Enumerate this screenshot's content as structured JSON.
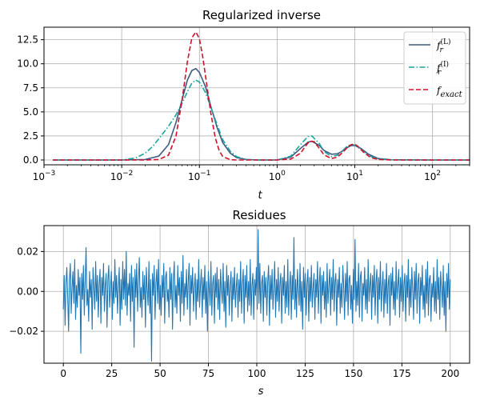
{
  "chart_data": [
    {
      "type": "line",
      "title": "Regularized inverse",
      "xlabel": "t",
      "ylabel": "",
      "x_scale": "log",
      "xlim": [
        0.001,
        300
      ],
      "ylim": [
        -0.5,
        13.8
      ],
      "x_ticks": [
        {
          "value": 0.001,
          "base": "10",
          "exp": "−3"
        },
        {
          "value": 0.01,
          "base": "10",
          "exp": "−2"
        },
        {
          "value": 0.1,
          "base": "10",
          "exp": "−1"
        },
        {
          "value": 1,
          "base": "10",
          "exp": "0"
        },
        {
          "value": 10,
          "base": "10",
          "exp": "1"
        },
        {
          "value": 100,
          "base": "10",
          "exp": "2"
        }
      ],
      "y_ticks": [
        {
          "value": 0,
          "label": "0.0"
        },
        {
          "value": 2.5,
          "label": "2.5"
        },
        {
          "value": 5,
          "label": "5.0"
        },
        {
          "value": 7.5,
          "label": "7.5"
        },
        {
          "value": 10,
          "label": "10.0"
        },
        {
          "value": 12.5,
          "label": "12.5"
        }
      ],
      "grid": true,
      "legend_position": "top-right",
      "series": [
        {
          "name": "f_r^(L)",
          "legend_base": "f",
          "legend_sub": "r",
          "legend_sup": "(L)",
          "color": "#3d5a80",
          "dash": "solid",
          "x": [
            0.0013,
            0.01,
            0.02,
            0.03,
            0.04,
            0.05,
            0.06,
            0.07,
            0.08,
            0.09,
            0.1,
            0.12,
            0.14,
            0.17,
            0.2,
            0.25,
            0.3,
            0.4,
            0.6,
            1,
            1.5,
            2,
            2.5,
            2.8,
            3.5,
            4,
            5,
            6,
            7,
            8,
            9,
            10,
            12,
            15,
            20,
            30,
            100,
            300
          ],
          "y": [
            0,
            0,
            0.05,
            0.4,
            1.6,
            3.9,
            6.3,
            8.3,
            9.3,
            9.5,
            9.1,
            7.6,
            5.6,
            3.3,
            1.8,
            0.7,
            0.25,
            0.05,
            0,
            0,
            0.3,
            1.2,
            1.85,
            1.95,
            1.5,
            1.0,
            0.6,
            0.65,
            0.95,
            1.3,
            1.5,
            1.5,
            1.2,
            0.6,
            0.15,
            0.02,
            0,
            0
          ]
        },
        {
          "name": "f_r^(I)",
          "legend_base": "f",
          "legend_sub": "r",
          "legend_sup": "(I)",
          "color": "#1aa59e",
          "dash": "dashdot",
          "x": [
            0.0013,
            0.01,
            0.015,
            0.02,
            0.025,
            0.03,
            0.04,
            0.05,
            0.06,
            0.07,
            0.08,
            0.09,
            0.1,
            0.12,
            0.14,
            0.17,
            0.2,
            0.25,
            0.3,
            0.4,
            0.6,
            1,
            1.5,
            2,
            2.5,
            2.8,
            3.5,
            4,
            5,
            6,
            7,
            8,
            9,
            10,
            12,
            15,
            20,
            30,
            100,
            300
          ],
          "y": [
            0,
            0,
            0.2,
            0.7,
            1.4,
            2.2,
            3.5,
            4.7,
            5.9,
            7.1,
            8.0,
            8.3,
            8.1,
            7.0,
            5.5,
            3.6,
            2.1,
            0.9,
            0.35,
            0.05,
            0,
            0,
            0.4,
            1.6,
            2.45,
            2.5,
            1.7,
            0.9,
            0.35,
            0.5,
            1.0,
            1.45,
            1.6,
            1.55,
            1.1,
            0.45,
            0.1,
            0.02,
            0,
            0
          ]
        },
        {
          "name": "f_exact",
          "legend_base": "f",
          "legend_sub": "exact",
          "legend_sup": "",
          "color": "#d0102a",
          "dash": "dashed",
          "x": [
            0.0013,
            0.02,
            0.03,
            0.04,
            0.05,
            0.06,
            0.07,
            0.08,
            0.09,
            0.1,
            0.11,
            0.12,
            0.14,
            0.16,
            0.18,
            0.2,
            0.25,
            0.3,
            0.5,
            1,
            1.5,
            2,
            2.3,
            2.6,
            3,
            3.5,
            4,
            5,
            6,
            7,
            8,
            9,
            10,
            11,
            13,
            16,
            20,
            30,
            100,
            300
          ],
          "y": [
            0,
            0,
            0.05,
            0.5,
            2.5,
            6.3,
            10.2,
            12.7,
            13.3,
            12.6,
            10.8,
            8.7,
            4.9,
            2.3,
            0.95,
            0.35,
            0.03,
            0,
            0,
            0,
            0.1,
            0.7,
            1.4,
            1.95,
            1.9,
            1.2,
            0.55,
            0.15,
            0.3,
            0.8,
            1.3,
            1.6,
            1.65,
            1.4,
            0.8,
            0.25,
            0.05,
            0,
            0,
            0
          ]
        }
      ]
    },
    {
      "type": "line",
      "title": "Residues",
      "xlabel": "s",
      "ylabel": "",
      "x_scale": "linear",
      "xlim": [
        -10,
        210
      ],
      "ylim": [
        -0.036,
        0.033
      ],
      "x_ticks": [
        {
          "value": 0,
          "label": "0"
        },
        {
          "value": 25,
          "label": "25"
        },
        {
          "value": 50,
          "label": "50"
        },
        {
          "value": 75,
          "label": "75"
        },
        {
          "value": 100,
          "label": "100"
        },
        {
          "value": 125,
          "label": "125"
        },
        {
          "value": 150,
          "label": "150"
        },
        {
          "value": 175,
          "label": "175"
        },
        {
          "value": 200,
          "label": "200"
        }
      ],
      "y_ticks": [
        {
          "value": 0.02,
          "label": "0.02"
        },
        {
          "value": 0,
          "label": "0.00"
        },
        {
          "value": -0.02,
          "label": "−0.02"
        }
      ],
      "grid": true,
      "series": [
        {
          "color": "#1f77b4",
          "x_start": 0,
          "x_end": 200,
          "y": [
            -0.009,
            0.008,
            -0.017,
            0.004,
            0.012,
            -0.003,
            -0.02,
            0.006,
            0.014,
            -0.011,
            0.002,
            0.01,
            -0.006,
            0.016,
            -0.014,
            0.003,
            -0.008,
            0.011,
            -0.002,
            0.007,
            -0.031,
            0.009,
            -0.004,
            0.013,
            -0.012,
            0.005,
            0.022,
            -0.007,
            0.001,
            -0.015,
            0.01,
            -0.003,
            0.006,
            -0.019,
            0.012,
            0.002,
            -0.009,
            0.015,
            -0.005,
            0.008,
            -0.013,
            0.004,
            0.011,
            -0.016,
            0.007,
            -0.002,
            0.014,
            -0.01,
            0.003,
            0.009,
            -0.018,
            0.006,
            0.013,
            -0.008,
            0.001,
            0.01,
            -0.014,
            0.005,
            -0.006,
            0.016,
            -0.003,
            0.008,
            -0.011,
            0.002,
            0.012,
            -0.017,
            0.006,
            -0.009,
            0.015,
            -0.004,
            0.011,
            -0.007,
            0.02,
            -0.012,
            0.004,
            -0.002,
            0.009,
            -0.015,
            0.013,
            -0.005,
            0.007,
            -0.028,
            0.011,
            -0.003,
            0.014,
            -0.01,
            0.005,
            0.017,
            -0.008,
            0.002,
            -0.013,
            0.01,
            -0.004,
            0.008,
            -0.018,
            0.012,
            0.001,
            -0.007,
            0.015,
            -0.011,
            0.006,
            -0.035,
            0.009,
            -0.002,
            0.013,
            -0.014,
            0.004,
            0.011,
            -0.006,
            0.016,
            -0.009,
            0.003,
            -0.012,
            0.008,
            -0.003,
            0.014,
            -0.016,
            0.007,
            0.01,
            -0.005,
            0.001,
            -0.013,
            0.012,
            -0.004,
            0.009,
            -0.019,
            0.006,
            0.015,
            -0.008,
            0.003,
            -0.011,
            0.013,
            -0.002,
            0.007,
            -0.015,
            0.01,
            -0.006,
            0.018,
            -0.012,
            0.004,
            -0.003,
            0.011,
            -0.009,
            0.005,
            0.014,
            -0.017,
            0.008,
            -0.001,
            0.012,
            -0.01,
            0.002,
            0.009,
            -0.014,
            0.006,
            -0.005,
            0.016,
            -0.008,
            0.003,
            0.011,
            -0.013,
            0.007,
            -0.004,
            0.013,
            -0.011,
            0.005,
            -0.02,
            0.01,
            0.002,
            -0.007,
            0.015,
            -0.012,
            0.004,
            0.008,
            -0.016,
            0.009,
            -0.003,
            0.012,
            -0.009,
            0.006,
            -0.014,
            0.011,
            0.001,
            -0.006,
            0.014,
            -0.01,
            0.005,
            -0.018,
            0.013,
            -0.002,
            0.008,
            -0.012,
            0.003,
            0.01,
            -0.015,
            0.007,
            -0.004,
            0.012,
            -0.008,
            0.002,
            0.009,
            -0.013,
            0.006,
            -0.005,
            0.015,
            -0.011,
            0.004,
            0.011,
            -0.016,
            0.008,
            -0.003,
            0.013,
            -0.01,
            0.005,
            -0.007,
            0.016,
            -0.012,
            0.003,
            0.009,
            -0.014,
            0.006,
            -0.002,
            0.012,
            -0.009,
            0.031,
            -0.006,
            0.014,
            -0.011,
            0.004,
            0.008,
            -0.015,
            0.01,
            -0.003,
            0.007,
            -0.012,
            0.005,
            0.013,
            -0.017,
            0.008,
            -0.004,
            0.011,
            -0.009,
            0.002,
            0.015,
            -0.013,
            0.006,
            -0.005,
            0.012,
            -0.01,
            0.004,
            0.009,
            -0.016,
            0.007,
            -0.002,
            0.013,
            -0.011,
            0.005,
            -0.008,
            0.016,
            -0.012,
            0.003,
            0.01,
            -0.014,
            0.008,
            -0.004,
            0.027,
            -0.009,
            0.006,
            -0.013,
            0.011,
            0.001,
            -0.007,
            0.014,
            -0.01,
            0.005,
            -0.019,
            0.012,
            -0.003,
            0.009,
            -0.012,
            0.004,
            0.011,
            -0.015,
            0.007,
            -0.005,
            0.013,
            -0.008,
            0.002,
            0.009,
            -0.014,
            0.006,
            -0.003,
            0.015,
            -0.011,
            0.004,
            0.012,
            -0.016,
            0.008,
            -0.002,
            0.01,
            -0.009,
            0.005,
            -0.013,
            0.014,
            -0.006,
            0.003,
            0.011,
            -0.012,
            0.007,
            -0.004,
            0.016,
            -0.01,
            0.005,
            0.009,
            -0.017,
            0.006,
            -0.003,
            0.012,
            -0.011,
            0.004,
            -0.008,
            0.013,
            0.002,
            -0.014,
            0.009,
            -0.005,
            0.015,
            -0.012,
            0.006,
            0.008,
            -0.009,
            0.003,
            -0.016,
            0.011,
            -0.004,
            0.026,
            -0.01,
            0.005,
            -0.007,
            0.014,
            -0.013,
            0.007,
            0.01,
            -0.015,
            0.004,
            -0.002,
            0.012,
            -0.009,
            0.006,
            -0.011,
            0.016,
            -0.005,
            0.003,
            0.009,
            -0.014,
            0.008,
            -0.003,
            0.013,
            -0.012,
            0.005,
            0.011,
            -0.016,
            0.007,
            -0.004,
            0.015,
            -0.01,
            0.002,
            0.01,
            -0.013,
            0.006,
            -0.006,
            0.014,
            -0.011,
            0.004,
            0.008,
            -0.017,
            0.009,
            -0.002,
            0.012,
            -0.009,
            0.005,
            -0.012,
            0.015,
            -0.004,
            0.003,
            0.011,
            -0.013,
            0.007,
            -0.005,
            0.013,
            -0.01,
            0.004,
            0.009,
            -0.015,
            0.008,
            -0.003,
            0.016,
            -0.012,
            0.006,
            -0.008,
            0.012,
            0.001,
            -0.014,
            0.01,
            -0.004,
            0.014,
            -0.011,
            0.005,
            0.009,
            -0.016,
            0.007,
            -0.002,
            0.013,
            -0.009,
            0.003,
            -0.013,
            0.011,
            -0.006,
            0.015,
            -0.012,
            0.006,
            0.008,
            -0.015,
            0.004,
            -0.003,
            0.012,
            -0.01,
            0.005,
            -0.011,
            0.016,
            -0.004,
            0.007,
            -0.014,
            0.01,
            0.002,
            -0.008,
            0.013,
            -0.012,
            0.005,
            -0.02,
            0.009,
            -0.003,
            0.014,
            -0.009,
            0.006
          ]
        }
      ]
    }
  ]
}
